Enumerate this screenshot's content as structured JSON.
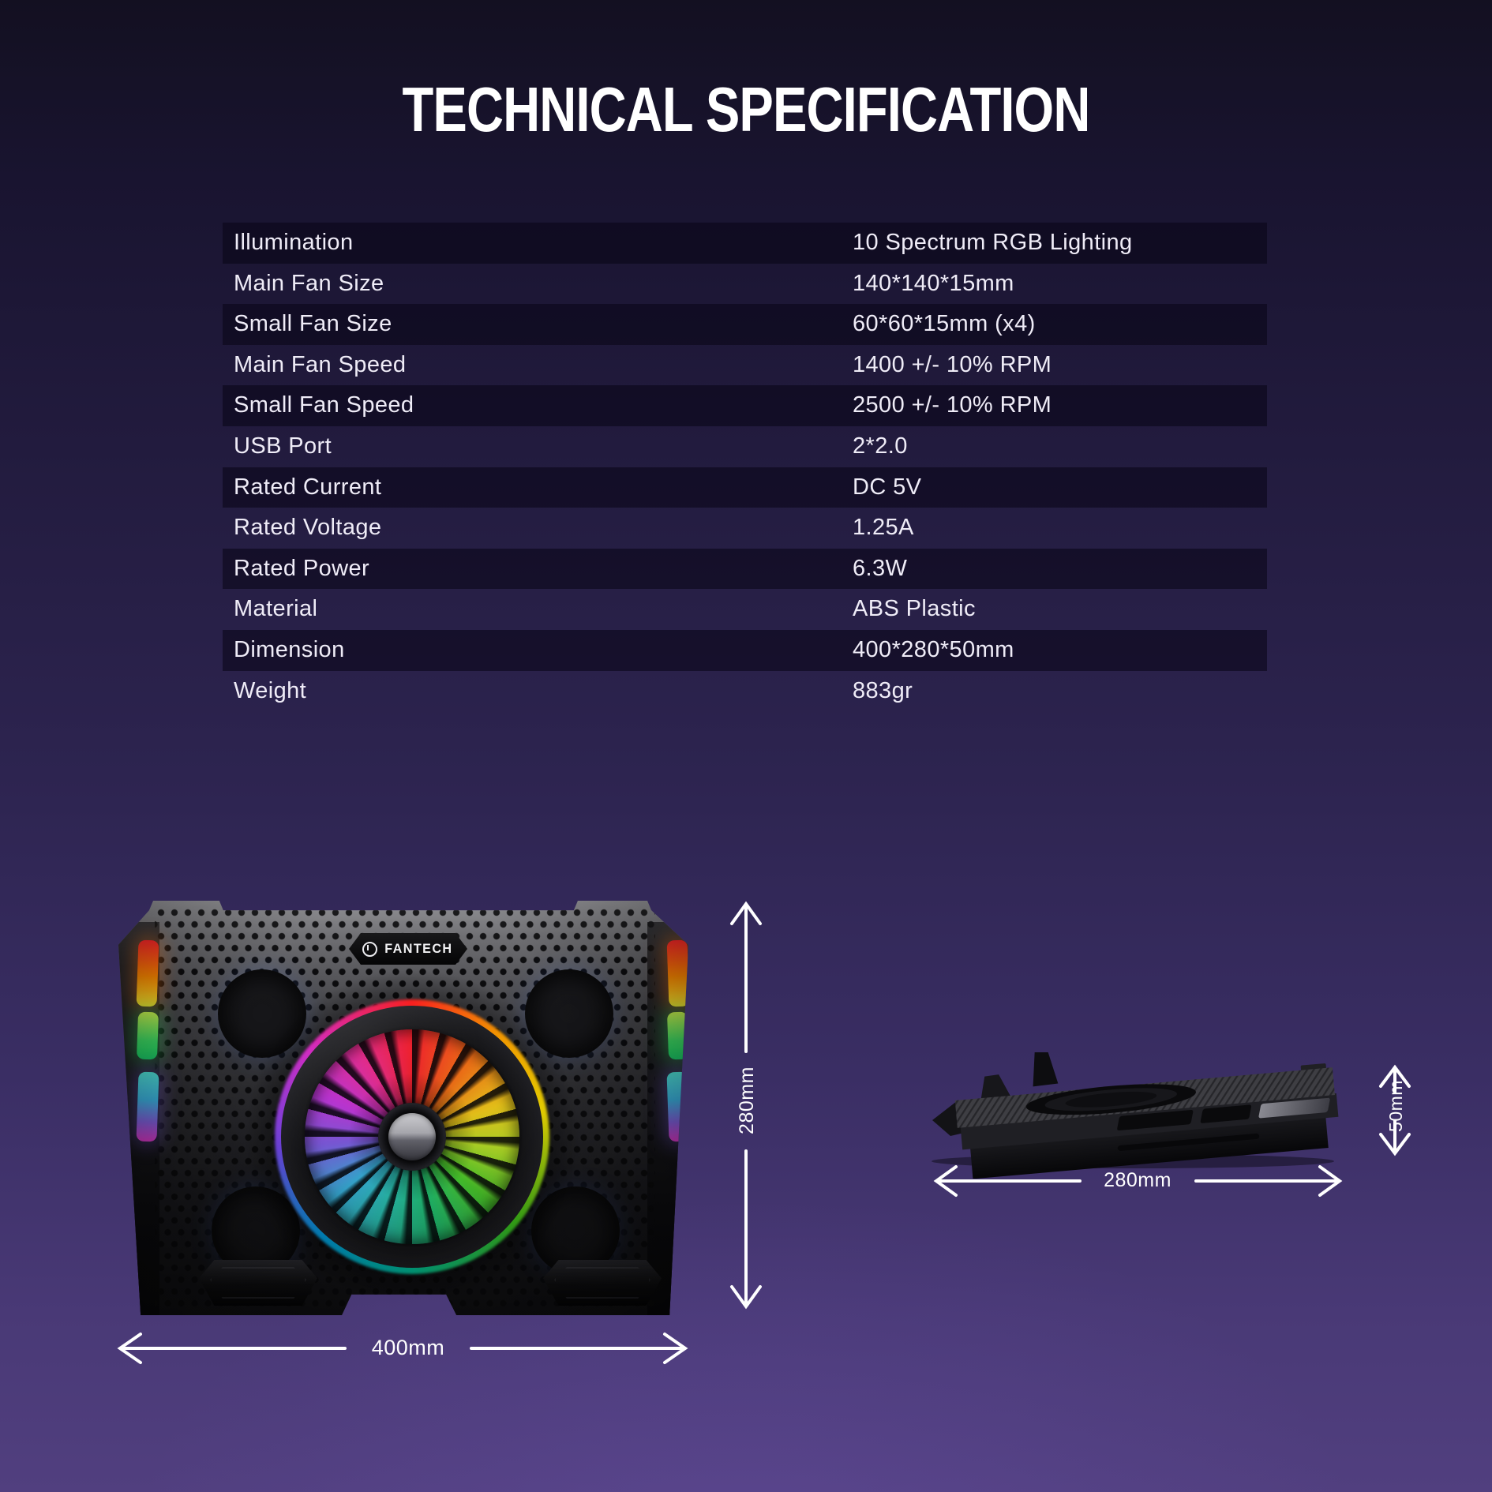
{
  "title": "TECHNICAL SPECIFICATION",
  "spec_table": {
    "rows": [
      {
        "label": "Illumination",
        "value": "10 Spectrum RGB Lighting"
      },
      {
        "label": "Main Fan Size",
        "value": "140*140*15mm"
      },
      {
        "label": "Small Fan Size",
        "value": "60*60*15mm (x4)"
      },
      {
        "label": "Main Fan Speed",
        "value": "1400 +/- 10% RPM"
      },
      {
        "label": "Small Fan Speed",
        "value": "2500 +/- 10% RPM"
      },
      {
        "label": "USB Port",
        "value": "2*2.0"
      },
      {
        "label": "Rated Current",
        "value": "DC 5V"
      },
      {
        "label": "Rated Voltage",
        "value": "1.25A"
      },
      {
        "label": "Rated Power",
        "value": "6.3W"
      },
      {
        "label": "Material",
        "value": "ABS Plastic"
      },
      {
        "label": "Dimension",
        "value": "400*280*50mm"
      },
      {
        "label": "Weight",
        "value": "883gr"
      }
    ]
  },
  "front_view": {
    "brand": "FANTECH",
    "width_label": "400mm",
    "height_label": "280mm"
  },
  "side_view": {
    "width_label": "280mm",
    "height_label": "50mm"
  },
  "colors": {
    "background_top": "#131021",
    "background_bottom": "#513f7f",
    "stripe": "#18132b",
    "text": "#efecf7",
    "rgb_fire": "#ff8a00",
    "rgb_green": "#3fe066",
    "rgb_cool": "#8e68f2",
    "led_blue": "#5c96ff"
  }
}
